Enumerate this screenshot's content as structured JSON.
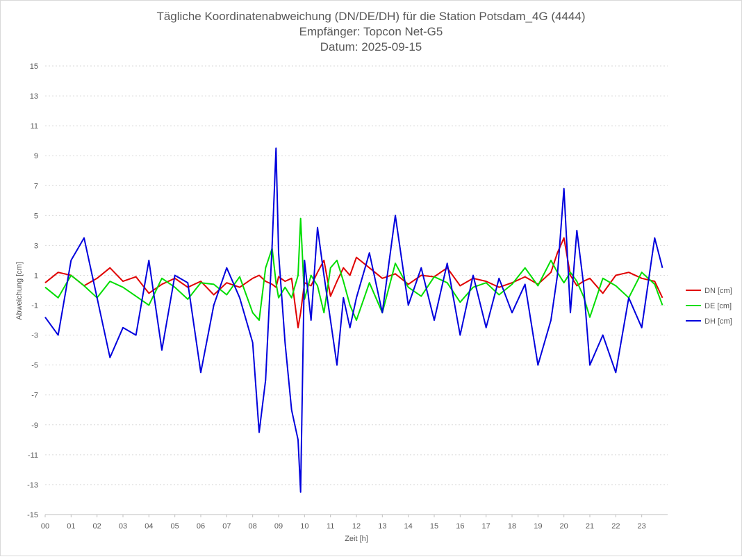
{
  "chart_data": {
    "type": "line",
    "title_lines": [
      "Tägliche Koordinatenabweichung (DN/DE/DH) für die Station Potsdam_4G (4444)",
      "Empfänger: Topcon Net-G5",
      "Datum: 2025-09-15"
    ],
    "xlabel": "Zeit [h]",
    "ylabel": "Abweichung [cm]",
    "xlim": [
      0,
      24
    ],
    "ylim": [
      -15,
      15
    ],
    "x_ticks": [
      "00",
      "01",
      "02",
      "03",
      "04",
      "05",
      "06",
      "07",
      "08",
      "09",
      "10",
      "11",
      "12",
      "13",
      "14",
      "15",
      "16",
      "17",
      "18",
      "19",
      "20",
      "21",
      "22",
      "23"
    ],
    "y_ticks": [
      "15",
      "13",
      "11",
      "9",
      "7",
      "5",
      "3",
      "1",
      "-1",
      "-3",
      "-5",
      "-7",
      "-9",
      "-11",
      "-13",
      "-15"
    ],
    "grid": true,
    "legend_position": "right",
    "x": [
      0,
      0.5,
      1,
      1.5,
      2,
      2.5,
      3,
      3.5,
      4,
      4.5,
      5,
      5.5,
      6,
      6.5,
      7,
      7.5,
      8,
      8.25,
      8.5,
      8.75,
      8.9,
      9,
      9.25,
      9.5,
      9.75,
      9.85,
      10,
      10.25,
      10.5,
      10.75,
      11,
      11.25,
      11.5,
      11.75,
      12,
      12.5,
      13,
      13.5,
      14,
      14.5,
      15,
      15.5,
      16,
      16.5,
      17,
      17.5,
      18,
      18.5,
      19,
      19.5,
      19.75,
      20,
      20.25,
      20.5,
      20.75,
      21,
      21.5,
      22,
      22.5,
      23,
      23.5,
      23.8
    ],
    "series": [
      {
        "name": "DN [cm]",
        "color": "#e00000",
        "values": [
          0.5,
          1.2,
          1.0,
          0.3,
          0.8,
          1.5,
          0.6,
          0.9,
          -0.2,
          0.4,
          0.8,
          0.2,
          0.6,
          -0.3,
          0.5,
          0.2,
          0.8,
          1.0,
          0.6,
          0.4,
          0.2,
          0.9,
          0.6,
          0.8,
          -2.5,
          -1.5,
          0.5,
          0.3,
          1.2,
          2.0,
          -0.4,
          0.6,
          1.5,
          1.0,
          2.2,
          1.5,
          0.8,
          1.1,
          0.4,
          1.0,
          0.9,
          1.5,
          0.3,
          0.8,
          0.6,
          0.2,
          0.5,
          0.9,
          0.4,
          1.2,
          2.5,
          3.5,
          1.0,
          0.3,
          0.6,
          0.8,
          -0.2,
          1.0,
          1.2,
          0.8,
          0.6,
          -0.5
        ]
      },
      {
        "name": "DE [cm]",
        "color": "#00dd00",
        "values": [
          0.2,
          -0.5,
          1.0,
          0.3,
          -0.5,
          0.6,
          0.2,
          -0.4,
          -1.0,
          0.8,
          0.2,
          -0.6,
          0.5,
          0.4,
          -0.3,
          0.9,
          -1.5,
          -2.0,
          1.5,
          2.8,
          0.5,
          -0.5,
          0.2,
          -0.5,
          1.0,
          4.8,
          -0.6,
          1.0,
          0.3,
          -1.5,
          1.5,
          2.0,
          0.6,
          -1.0,
          -2.0,
          0.5,
          -1.5,
          1.8,
          0.2,
          -0.4,
          0.9,
          0.5,
          -0.8,
          0.2,
          0.5,
          -0.3,
          0.4,
          1.5,
          0.3,
          2.0,
          1.2,
          0.5,
          1.2,
          0.6,
          -0.4,
          -1.8,
          0.8,
          0.3,
          -0.5,
          1.2,
          0.4,
          -1.0
        ]
      },
      {
        "name": "DH [cm]",
        "color": "#0000dd",
        "values": [
          -1.8,
          -3.0,
          2.0,
          3.5,
          -0.5,
          -4.5,
          -2.5,
          -3.0,
          2.0,
          -4.0,
          1.0,
          0.5,
          -5.5,
          -1.0,
          1.5,
          -0.5,
          -3.5,
          -9.5,
          -6.0,
          3.0,
          9.5,
          2.5,
          -3.5,
          -8.0,
          -10.0,
          -13.5,
          2.0,
          -2.0,
          4.2,
          1.0,
          -2.0,
          -5.0,
          -0.5,
          -2.5,
          -0.5,
          2.5,
          -1.5,
          5.0,
          -1.0,
          1.5,
          -2.0,
          1.8,
          -3.0,
          1.0,
          -2.5,
          0.8,
          -1.5,
          0.4,
          -5.0,
          -2.0,
          1.0,
          6.8,
          -1.5,
          4.0,
          0.5,
          -5.0,
          -3.0,
          -5.5,
          -0.5,
          -2.5,
          3.5,
          1.5
        ]
      }
    ]
  }
}
